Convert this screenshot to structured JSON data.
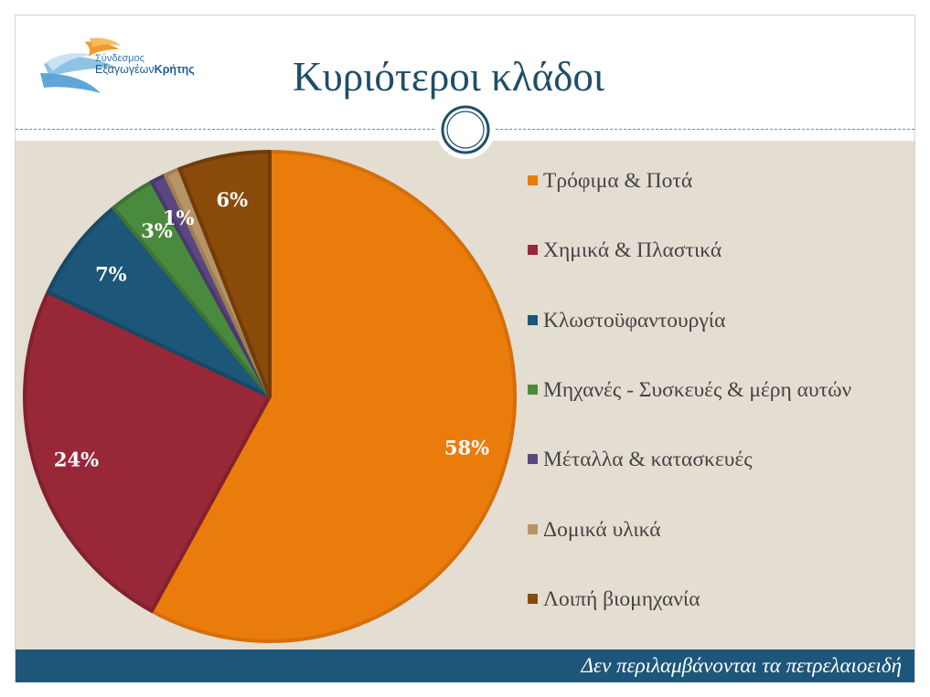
{
  "slide": {
    "title": "Κυριότεροι κλάδοι",
    "footer_note": "Δεν περιλαμβάνονται τα πετρελαιοειδή"
  },
  "logo": {
    "line1": "Σύνδεσμος",
    "line2_regular": "Εξαγωγέων",
    "line2_bold": "Κρήτης"
  },
  "chart_data": {
    "type": "pie",
    "title": "",
    "legend_position": "right",
    "slices": [
      {
        "label": "Τρόφιμα & Ποτά",
        "value": 58,
        "data_label": "58%",
        "color": "#ea7c0c",
        "edge": "#d46f0a"
      },
      {
        "label": "Χημικά & Πλαστικά",
        "value": 24,
        "data_label": "24%",
        "color": "#982838",
        "edge": "#83202e"
      },
      {
        "label": "Κλωστοϋφαντουργία",
        "value": 7,
        "data_label": "7%",
        "color": "#1c5678",
        "edge": "#174866"
      },
      {
        "label": "Μηχανές - Συσκευές & μέρη αυτών",
        "value": 3,
        "data_label": "3%",
        "color": "#4a8a3e",
        "edge": "#3d7433"
      },
      {
        "label": "Μέταλλα & κατασκευές",
        "value": 1,
        "data_label": "1%",
        "color": "#5a4680",
        "edge": "#4a3a6b"
      },
      {
        "label": "Δομικά υλικά",
        "value": 1,
        "data_label": "",
        "color": "#b69466",
        "edge": "#9e7f55"
      },
      {
        "label": "Λοιπή βιομηχανία",
        "value": 6,
        "data_label": "6%",
        "color": "#8a4a0a",
        "edge": "#713c08"
      }
    ]
  },
  "colors": {
    "accent": "#1f4e68",
    "footer_bg": "#1e567a",
    "chart_bg": "#e4ddd1"
  }
}
